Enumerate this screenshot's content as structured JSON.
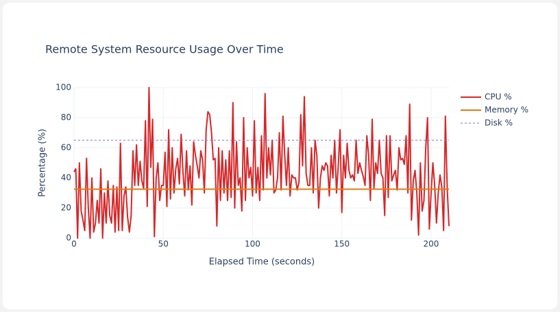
{
  "chart_data": {
    "type": "line",
    "title": "Remote System Resource Usage Over Time",
    "x_label": "Elapsed Time (seconds)",
    "y_label": "Percentage (%)",
    "xlim": [
      0,
      210
    ],
    "ylim": [
      0,
      100
    ],
    "xticks": [
      0,
      50,
      100,
      150,
      200
    ],
    "yticks": [
      0,
      20,
      40,
      60,
      80,
      100
    ],
    "grid": true,
    "legend": "right",
    "series": [
      {
        "name": "CPU %",
        "color": "#d62728",
        "dash": "solid",
        "x": [
          0,
          1,
          2,
          3,
          4,
          5,
          6,
          7,
          8,
          9,
          10,
          11,
          12,
          13,
          14,
          15,
          16,
          17,
          18,
          19,
          20,
          21,
          22,
          23,
          24,
          25,
          26,
          27,
          28,
          29,
          30,
          31,
          32,
          33,
          34,
          35,
          36,
          37,
          38,
          39,
          40,
          41,
          42,
          43,
          44,
          45,
          46,
          47,
          48,
          49,
          50,
          51,
          52,
          53,
          54,
          55,
          56,
          57,
          58,
          59,
          60,
          61,
          62,
          63,
          64,
          65,
          66,
          67,
          68,
          69,
          70,
          71,
          72,
          73,
          74,
          75,
          76,
          77,
          78,
          79,
          80,
          81,
          82,
          83,
          84,
          85,
          86,
          87,
          88,
          89,
          90,
          91,
          92,
          93,
          94,
          95,
          96,
          97,
          98,
          99,
          100,
          101,
          102,
          103,
          104,
          105,
          106,
          107,
          108,
          109,
          110,
          111,
          112,
          113,
          114,
          115,
          116,
          117,
          118,
          119,
          120,
          121,
          122,
          123,
          124,
          125,
          126,
          127,
          128,
          129,
          130,
          131,
          132,
          133,
          134,
          135,
          136,
          137,
          138,
          139,
          140,
          141,
          142,
          143,
          144,
          145,
          146,
          147,
          148,
          149,
          150,
          151,
          152,
          153,
          154,
          155,
          156,
          157,
          158,
          159,
          160,
          161,
          162,
          163,
          164,
          165,
          166,
          167,
          168,
          169,
          170,
          171,
          172,
          173,
          174,
          175,
          176,
          177,
          178,
          179,
          180,
          181,
          182,
          183,
          184,
          185,
          186,
          187,
          188,
          189,
          190,
          191,
          192,
          193,
          194,
          195,
          196,
          197,
          198,
          199,
          200,
          201,
          202,
          203,
          204,
          205,
          206,
          207,
          208,
          209,
          210
        ],
        "values": [
          44,
          46,
          0,
          50,
          18,
          12,
          5,
          53,
          20,
          0,
          40,
          4,
          10,
          25,
          10,
          46,
          0,
          30,
          10,
          38,
          15,
          10,
          35,
          4,
          34,
          5,
          63,
          5,
          28,
          34,
          14,
          4,
          15,
          58,
          35,
          62,
          35,
          51,
          38,
          33,
          78,
          21,
          100,
          47,
          79,
          1,
          40,
          50,
          25,
          35,
          35,
          57,
          21,
          72,
          26,
          60,
          30,
          46,
          53,
          36,
          69,
          44,
          28,
          58,
          32,
          48,
          22,
          64,
          55,
          48,
          40,
          58,
          52,
          30,
          72,
          84,
          82,
          70,
          52,
          53,
          8,
          60,
          25,
          58,
          30,
          52,
          25,
          58,
          27,
          90,
          20,
          64,
          35,
          40,
          18,
          80,
          25,
          60,
          40,
          47,
          28,
          78,
          30,
          47,
          25,
          68,
          32,
          96,
          40,
          60,
          42,
          65,
          30,
          32,
          40,
          70,
          32,
          81,
          55,
          35,
          60,
          28,
          42,
          40,
          40,
          32,
          37,
          82,
          48,
          94,
          43,
          35,
          35,
          60,
          30,
          65,
          55,
          20,
          40,
          48,
          45,
          50,
          48,
          28,
          55,
          40,
          65,
          30,
          48,
          72,
          17,
          55,
          40,
          63,
          45,
          40,
          42,
          38,
          65,
          43,
          50,
          45,
          41,
          35,
          68,
          55,
          25,
          79,
          33,
          50,
          43,
          65,
          43,
          40,
          15,
          68,
          27,
          68,
          38,
          42,
          45,
          32,
          60,
          52,
          53,
          49,
          68,
          30,
          89,
          12,
          38,
          45,
          30,
          2,
          50,
          18,
          25,
          60,
          80,
          6,
          30,
          50,
          35,
          10,
          30,
          42,
          34,
          5,
          81,
          34,
          8
        ]
      },
      {
        "name": "Memory %",
        "color": "#e07b12",
        "dash": "solid",
        "x": [
          0,
          210
        ],
        "values": [
          32.5,
          32.5
        ]
      },
      {
        "name": "Disk %",
        "color": "#7b6fd6",
        "dash": "dash",
        "x": [
          0,
          210
        ],
        "values": [
          65,
          65
        ]
      }
    ]
  }
}
